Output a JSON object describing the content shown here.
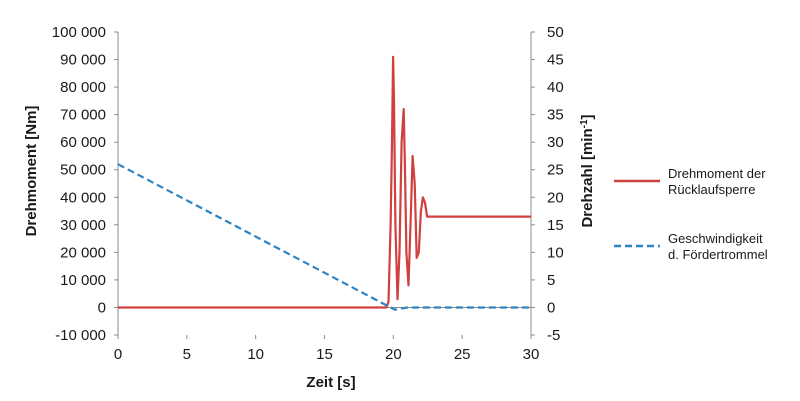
{
  "chart_data": {
    "type": "line",
    "xlabel": "Zeit [s]",
    "ylabel_left": "Drehmoment [Nm]",
    "ylabel_right_main": "Drehzahl [min",
    "ylabel_right_sup": "-1",
    "ylabel_right_close": "]",
    "xlim": [
      0,
      30
    ],
    "ylim_left": [
      -10000,
      100000
    ],
    "ylim_right": [
      -5,
      50
    ],
    "x_ticks": [
      "0",
      "5",
      "10",
      "15",
      "20",
      "25",
      "30"
    ],
    "y_left_ticks": [
      "-10 000",
      "0",
      "10 000",
      "20 000",
      "30 000",
      "40 000",
      "50 000",
      "60 000",
      "70 000",
      "80 000",
      "90 000",
      "100 000"
    ],
    "y_right_ticks": [
      "-5",
      "0",
      "5",
      "10",
      "15",
      "20",
      "25",
      "30",
      "35",
      "40",
      "45",
      "50"
    ],
    "grid": false,
    "legend_position": "right",
    "series": [
      {
        "name_line1": "Drehmoment der",
        "name_line2": "Rücklaufsperre",
        "axis": "left",
        "color": "#d0403e",
        "style": "solid",
        "x": [
          0,
          19.5,
          19.65,
          19.8,
          19.9,
          19.98,
          20.05,
          20.15,
          20.3,
          20.45,
          20.6,
          20.75,
          20.85,
          20.95,
          21.1,
          21.25,
          21.4,
          21.55,
          21.7,
          21.85,
          22.0,
          22.15,
          22.3,
          22.45,
          22.6,
          30
        ],
        "y": [
          0,
          0,
          2000,
          30000,
          60000,
          91000,
          75000,
          30000,
          3000,
          20000,
          60000,
          72000,
          50000,
          20000,
          8000,
          30000,
          55000,
          45000,
          18000,
          20000,
          35000,
          40000,
          38000,
          33000,
          33000,
          33000
        ]
      },
      {
        "name_line1": "Geschwindigkeit",
        "name_line2": "d. Fördertrommel",
        "axis": "right",
        "color": "#2e83c2",
        "style": "dashed",
        "x": [
          0,
          19.8,
          20.1,
          21.0,
          30
        ],
        "y": [
          26,
          0,
          -0.4,
          0,
          0
        ]
      }
    ]
  }
}
